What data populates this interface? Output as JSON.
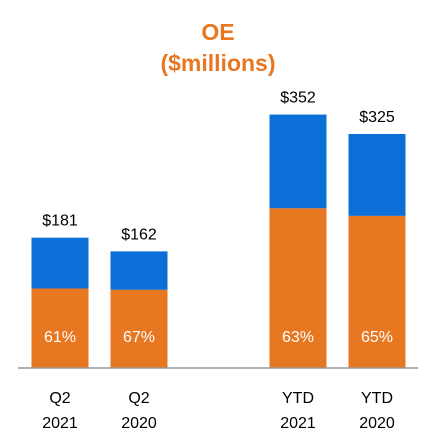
{
  "chart_data": {
    "type": "bar",
    "stacked": true,
    "title": "OE",
    "subtitle": "($millions)",
    "categories": [
      {
        "line1": "Q2",
        "line2": "2021"
      },
      {
        "line1": "Q2",
        "line2": "2020"
      },
      {
        "line1": "YTD",
        "line2": "2021"
      },
      {
        "line1": "YTD",
        "line2": "2020"
      }
    ],
    "totals": [
      181,
      162,
      352,
      325
    ],
    "total_labels": [
      "$181",
      "$162",
      "$352",
      "$325"
    ],
    "lower_share": [
      0.61,
      0.67,
      0.63,
      0.65
    ],
    "lower_share_labels": [
      "61%",
      "67%",
      "63%",
      "65%"
    ],
    "ylim": [
      0,
      400
    ],
    "grid": false,
    "legend": "none"
  },
  "colors": {
    "title": "#e87722",
    "lower_segment": "#e87722",
    "upper_segment": "#0a6fd6",
    "baseline": "#999999"
  }
}
